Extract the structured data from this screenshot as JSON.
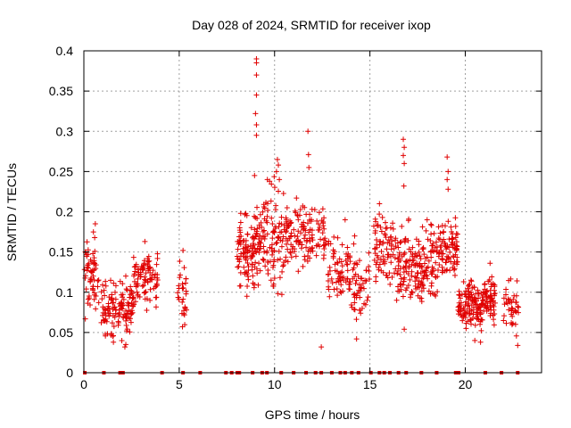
{
  "chart_data": {
    "type": "scatter",
    "title": "Day 028 of 2024, SRMTID for receiver ixop",
    "xlabel": "GPS time / hours",
    "ylabel": "SRMTID / TECUs",
    "xlim": [
      0,
      24
    ],
    "ylim": [
      0,
      0.4
    ],
    "xticks": [
      0,
      5,
      10,
      15,
      20
    ],
    "yticks": [
      0,
      0.05,
      0.1,
      0.15,
      0.2,
      0.25,
      0.3,
      0.35,
      0.4
    ],
    "xtick_labels": [
      "0",
      "5",
      "10",
      "15",
      "20"
    ],
    "ytick_labels": [
      "0",
      "0.05",
      "0.1",
      "0.15",
      "0.2",
      "0.25",
      "0.3",
      "0.35",
      "0.4"
    ],
    "grid": true,
    "marker": "+",
    "marker_color": "#e00000",
    "zero_value_times": [
      0.05,
      1.05,
      1.9,
      2.05,
      4.1,
      5.2,
      6.1,
      7.45,
      7.75,
      8.05,
      8.15,
      8.85,
      9.35,
      9.6,
      10.35,
      11.0,
      11.65,
      12.15,
      12.45,
      13.0,
      13.45,
      13.7,
      14.05,
      14.4,
      15.05,
      15.5,
      15.75,
      16.05,
      16.5,
      16.9,
      17.7,
      18.5,
      19.5,
      19.65,
      21.05,
      21.9,
      22.75
    ],
    "clusters": [
      {
        "x0": 0.0,
        "x1": 0.8,
        "ymin": 0.05,
        "ymax": 0.185,
        "n": 60
      },
      {
        "x0": 0.9,
        "x1": 1.7,
        "ymin": 0.03,
        "ymax": 0.13,
        "n": 60
      },
      {
        "x0": 1.8,
        "x1": 2.6,
        "ymin": 0.03,
        "ymax": 0.13,
        "n": 70
      },
      {
        "x0": 2.6,
        "x1": 3.9,
        "ymin": 0.07,
        "ymax": 0.165,
        "n": 90
      },
      {
        "x0": 4.9,
        "x1": 5.4,
        "ymin": 0.05,
        "ymax": 0.15,
        "n": 30
      },
      {
        "x0": 8.0,
        "x1": 9.3,
        "ymin": 0.09,
        "ymax": 0.22,
        "n": 120
      },
      {
        "x0": 9.3,
        "x1": 10.5,
        "ymin": 0.07,
        "ymax": 0.265,
        "n": 90
      },
      {
        "x0": 10.5,
        "x1": 11.9,
        "ymin": 0.11,
        "ymax": 0.225,
        "n": 90
      },
      {
        "x0": 11.9,
        "x1": 12.7,
        "ymin": 0.12,
        "ymax": 0.215,
        "n": 40
      },
      {
        "x0": 12.8,
        "x1": 14.0,
        "ymin": 0.06,
        "ymax": 0.19,
        "n": 70
      },
      {
        "x0": 14.0,
        "x1": 15.0,
        "ymin": 0.04,
        "ymax": 0.17,
        "n": 50
      },
      {
        "x0": 15.2,
        "x1": 16.4,
        "ymin": 0.09,
        "ymax": 0.215,
        "n": 80
      },
      {
        "x0": 16.4,
        "x1": 17.6,
        "ymin": 0.06,
        "ymax": 0.2,
        "n": 100
      },
      {
        "x0": 17.6,
        "x1": 18.6,
        "ymin": 0.07,
        "ymax": 0.2,
        "n": 80
      },
      {
        "x0": 18.6,
        "x1": 19.6,
        "ymin": 0.1,
        "ymax": 0.215,
        "n": 90
      },
      {
        "x0": 19.6,
        "x1": 21.0,
        "ymin": 0.04,
        "ymax": 0.125,
        "n": 130
      },
      {
        "x0": 21.0,
        "x1": 21.6,
        "ymin": 0.05,
        "ymax": 0.135,
        "n": 60
      },
      {
        "x0": 22.0,
        "x1": 22.8,
        "ymin": 0.04,
        "ymax": 0.125,
        "n": 40
      }
    ],
    "points": [
      [
        9.05,
        0.39
      ],
      [
        9.05,
        0.385
      ],
      [
        9.05,
        0.37
      ],
      [
        9.05,
        0.345
      ],
      [
        9.0,
        0.322
      ],
      [
        9.05,
        0.308
      ],
      [
        9.05,
        0.295
      ],
      [
        8.95,
        0.245
      ],
      [
        11.75,
        0.3
      ],
      [
        11.78,
        0.271
      ],
      [
        11.8,
        0.255
      ],
      [
        16.75,
        0.29
      ],
      [
        16.8,
        0.28
      ],
      [
        16.75,
        0.27
      ],
      [
        16.8,
        0.26
      ],
      [
        16.78,
        0.232
      ],
      [
        19.05,
        0.268
      ],
      [
        19.1,
        0.25
      ],
      [
        19.05,
        0.24
      ],
      [
        19.1,
        0.228
      ],
      [
        10.15,
        0.265
      ],
      [
        10.2,
        0.258
      ],
      [
        10.1,
        0.25
      ],
      [
        10.25,
        0.24
      ],
      [
        12.45,
        0.032
      ],
      [
        2.15,
        0.032
      ],
      [
        2.2,
        0.035
      ],
      [
        1.55,
        0.038
      ],
      [
        14.3,
        0.042
      ],
      [
        16.8,
        0.054
      ],
      [
        20.5,
        0.04
      ],
      [
        20.8,
        0.038
      ],
      [
        22.75,
        0.034
      ],
      [
        0.6,
        0.185
      ],
      [
        0.5,
        0.175
      ],
      [
        3.2,
        0.163
      ],
      [
        5.2,
        0.152
      ],
      [
        13.7,
        0.19
      ],
      [
        15.5,
        0.21
      ],
      [
        18.0,
        0.19
      ],
      [
        21.3,
        0.136
      ],
      [
        14.15,
        0.16
      ],
      [
        14.2,
        0.17
      ],
      [
        20.3,
        0.115
      ],
      [
        8.55,
        0.095
      ],
      [
        9.95,
        0.11
      ]
    ]
  }
}
